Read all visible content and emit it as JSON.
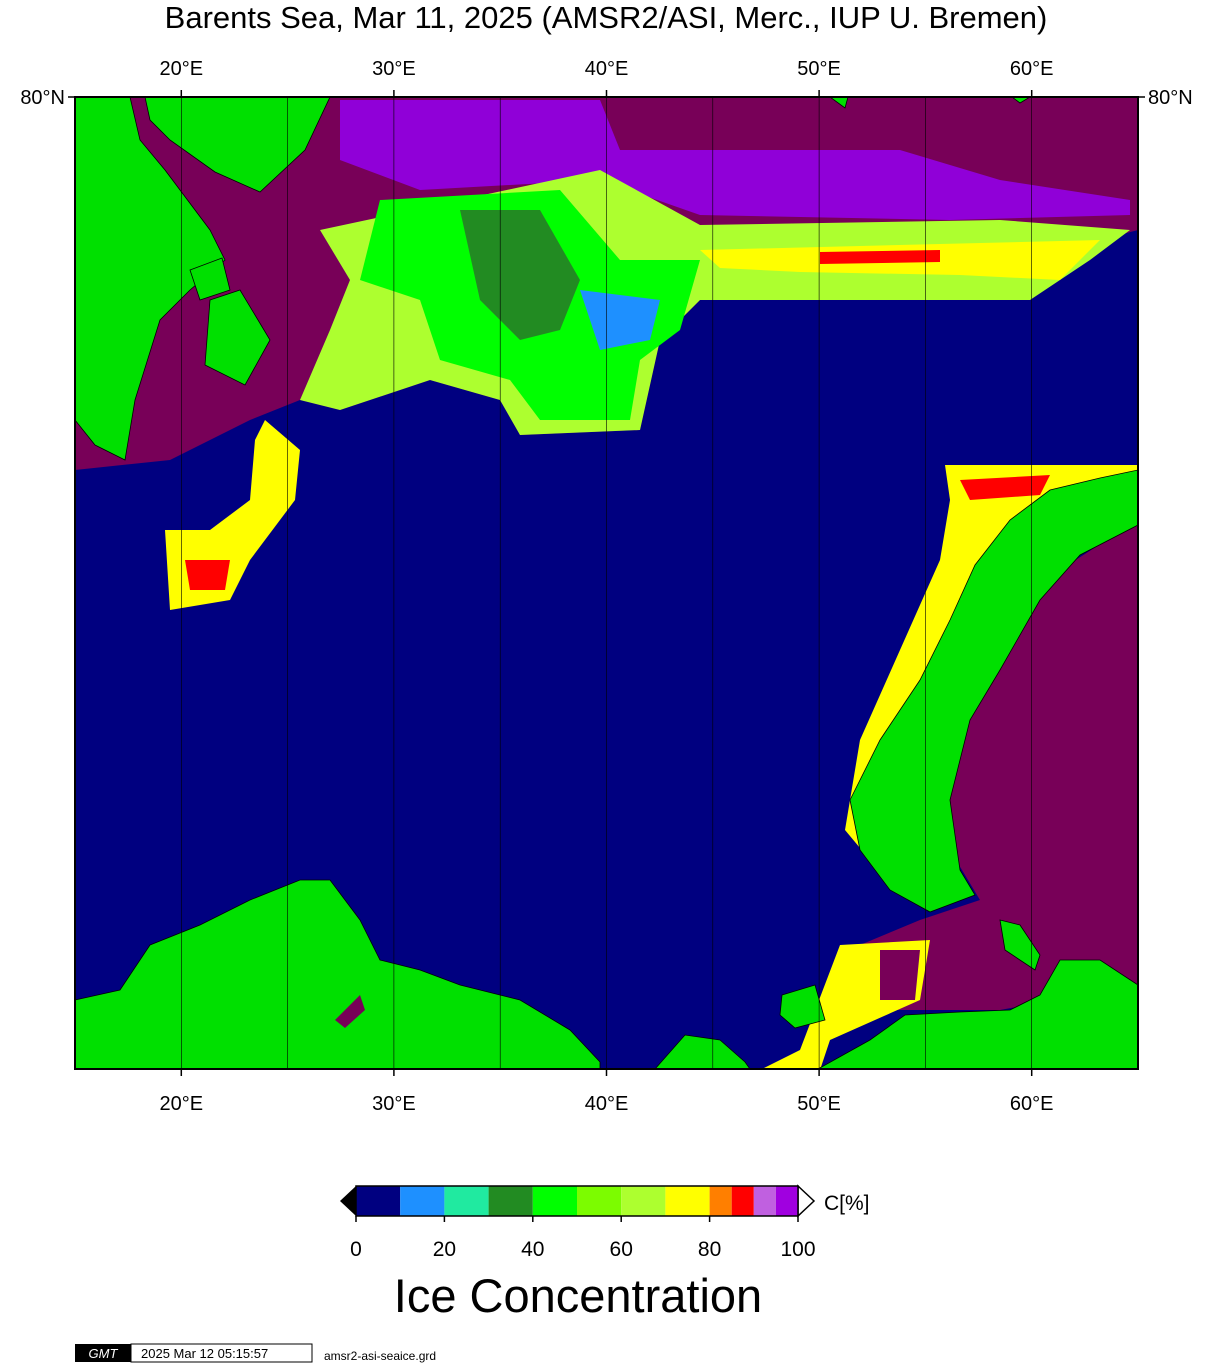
{
  "map": {
    "title": "Barents Sea, Mar 11, 2025 (AMSR2/ASI, Merc., IUP U. Bremen)",
    "xlim": [
      15,
      65
    ],
    "ylim": [
      68.1,
      80
    ],
    "xticks": [
      {
        "value": 20,
        "label": "20°E"
      },
      {
        "value": 30,
        "label": "30°E"
      },
      {
        "value": 40,
        "label": "40°E"
      },
      {
        "value": 50,
        "label": "50°E"
      },
      {
        "value": 60,
        "label": "60°E"
      }
    ],
    "yticks": [
      {
        "value": 80,
        "label": "80°N"
      }
    ],
    "grid": true
  },
  "colorbar": {
    "label": "C[%]",
    "title": "Ice Concentration",
    "lim": [
      0,
      100
    ],
    "bounds": [
      0,
      10,
      20,
      30,
      40,
      50,
      60,
      70,
      80,
      85,
      90,
      95,
      100
    ],
    "colors": [
      "#000080",
      "#1e90ff",
      "#20eaa0",
      "#228b22",
      "#00ff00",
      "#7cfc00",
      "#adff2f",
      "#ffff00",
      "#ff7f00",
      "#ff0000",
      "#c060e0",
      "#a000e0"
    ],
    "ticks": [
      0,
      20,
      40,
      60,
      80,
      100
    ]
  },
  "footer": {
    "logo": "GMT",
    "timestamp": "2025 Mar 12 05:15:57",
    "file": "amsr2-asi-seaice.grd"
  }
}
